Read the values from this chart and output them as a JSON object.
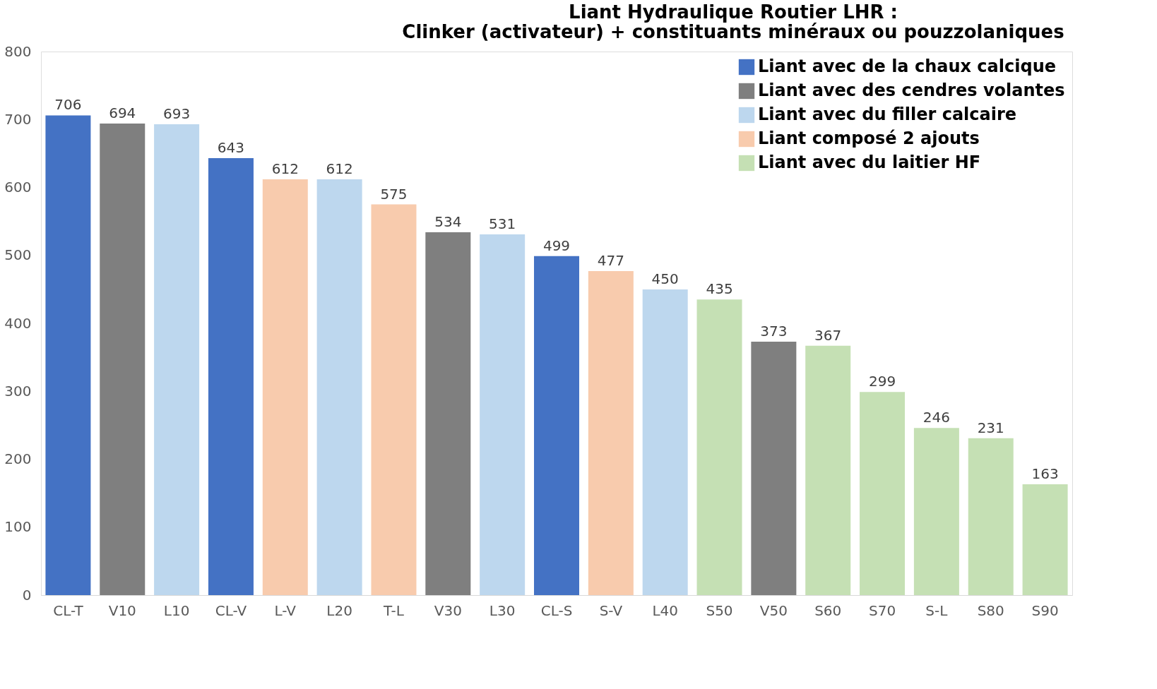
{
  "chart_data": {
    "type": "bar",
    "title": [
      "Liant Hydraulique Routier LHR :",
      "Clinker (activateur) + constituants minéraux ou pouzzolaniques"
    ],
    "categories": [
      "CL-T",
      "V10",
      "L10",
      "CL-V",
      "L-V",
      "L20",
      "T-L",
      "V30",
      "L30",
      "CL-S",
      "S-V",
      "L40",
      "S50",
      "V50",
      "S60",
      "S70",
      "S-L",
      "S80",
      "S90"
    ],
    "series": [
      {
        "name": "Liant avec de la chaux calcique",
        "color": "#4472c4",
        "values": [
          706,
          null,
          null,
          643,
          null,
          null,
          null,
          null,
          null,
          499,
          null,
          null,
          null,
          null,
          null,
          null,
          null,
          null,
          null
        ]
      },
      {
        "name": "Liant avec des cendres volantes",
        "color": "#7f7f7f",
        "values": [
          null,
          694,
          null,
          null,
          null,
          null,
          null,
          534,
          null,
          null,
          null,
          null,
          null,
          373,
          null,
          null,
          null,
          null,
          null
        ]
      },
      {
        "name": "Liant avec du filler calcaire",
        "color": "#bdd7ee",
        "values": [
          null,
          null,
          693,
          null,
          null,
          612,
          null,
          null,
          531,
          null,
          null,
          450,
          null,
          null,
          null,
          null,
          null,
          null,
          null
        ]
      },
      {
        "name": "Liant composé 2 ajouts",
        "color": "#f8cbad",
        "values": [
          null,
          null,
          null,
          null,
          612,
          null,
          575,
          null,
          null,
          null,
          477,
          null,
          null,
          null,
          null,
          null,
          null,
          null,
          null
        ]
      },
      {
        "name": "Liant avec du laitier HF",
        "color": "#c5e0b4",
        "values": [
          null,
          null,
          null,
          null,
          null,
          null,
          null,
          null,
          null,
          null,
          null,
          null,
          435,
          null,
          367,
          299,
          246,
          231,
          163
        ]
      }
    ],
    "ylim": [
      0,
      800
    ],
    "yticks": [
      0,
      100,
      200,
      300,
      400,
      500,
      600,
      700,
      800
    ],
    "grid": false,
    "legend": "top right",
    "data_labels": true
  }
}
